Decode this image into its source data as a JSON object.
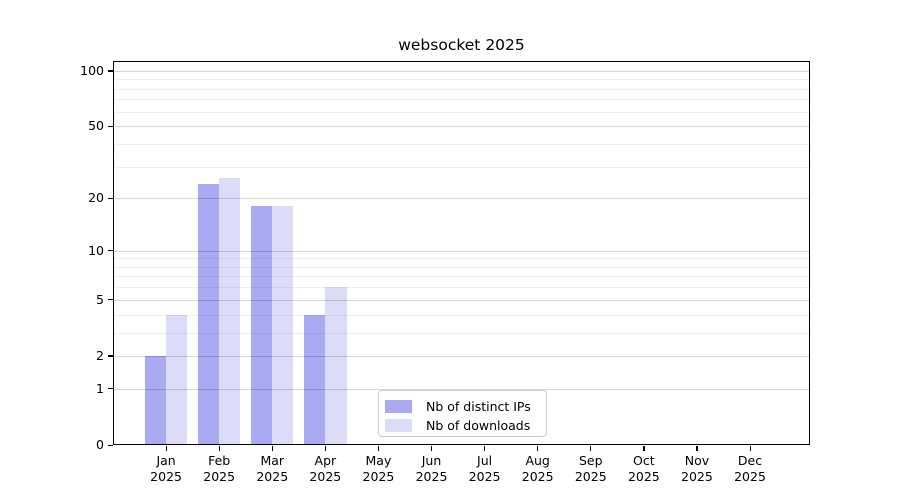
{
  "chart_data": {
    "type": "bar",
    "title": "websocket 2025",
    "x": {
      "months": [
        "Jan",
        "Feb",
        "Mar",
        "Apr",
        "May",
        "Jun",
        "Jul",
        "Aug",
        "Sep",
        "Oct",
        "Nov",
        "Dec"
      ],
      "year": "2025"
    },
    "y_axis": {
      "scale": "log1p",
      "ylim": [
        0,
        113
      ],
      "major_ticks": [
        100,
        50,
        20,
        10,
        5,
        2,
        1,
        0
      ],
      "major_tick_labels": [
        "100",
        "50",
        "20",
        "10",
        "5",
        "2",
        "1",
        "0"
      ],
      "minor_gridlines": [
        3,
        4,
        6,
        7,
        8,
        9,
        30,
        40,
        60,
        70,
        80,
        90
      ],
      "grid": "on"
    },
    "series": [
      {
        "name": "Nb of distinct IPs",
        "color": "#aaaaf2",
        "values": [
          2,
          24,
          18,
          4,
          0,
          0,
          0,
          0,
          0,
          0,
          0,
          0
        ]
      },
      {
        "name": "Nb of downloads",
        "color": "#dcdcf8",
        "values": [
          4,
          26,
          18,
          6,
          0,
          0,
          0,
          0,
          0,
          0,
          0,
          0
        ]
      }
    ],
    "legend": {
      "position": "lower-center",
      "entries": [
        "Nb of distinct IPs",
        "Nb of downloads"
      ]
    }
  }
}
